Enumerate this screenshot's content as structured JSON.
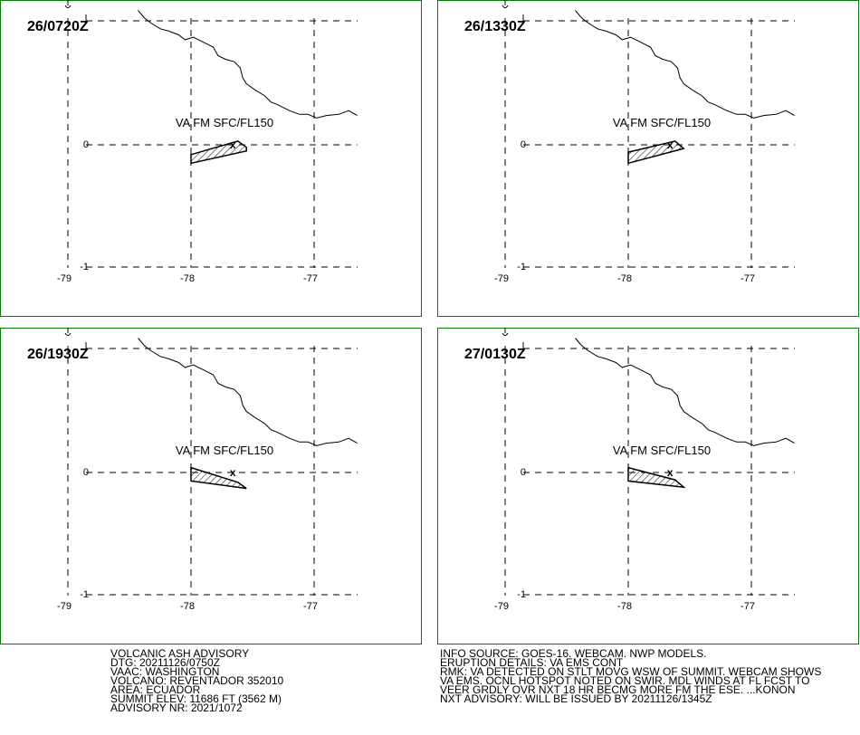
{
  "panels": [
    {
      "time_label": "26/0720Z",
      "cloud_label": "VA FM SFC/FL150",
      "ash_polygon": [
        [
          -78.0,
          -0.08
        ],
        [
          -77.62,
          0.03
        ],
        [
          -77.55,
          -0.02
        ],
        [
          -77.55,
          -0.05
        ],
        [
          -78.0,
          -0.15
        ]
      ]
    },
    {
      "time_label": "26/1330Z",
      "cloud_label": "VA FM SFC/FL150",
      "ash_polygon": [
        [
          -78.0,
          -0.06
        ],
        [
          -77.62,
          0.03
        ],
        [
          -77.55,
          -0.03
        ],
        [
          -78.0,
          -0.15
        ]
      ]
    },
    {
      "time_label": "26/1930Z",
      "cloud_label": "VA FM SFC/FL150",
      "ash_polygon": [
        [
          -78.0,
          0.04
        ],
        [
          -77.62,
          -0.08
        ],
        [
          -77.55,
          -0.13
        ],
        [
          -78.0,
          -0.07
        ]
      ]
    },
    {
      "time_label": "27/0130Z",
      "cloud_label": "VA FM SFC/FL150",
      "ash_polygon": [
        [
          -78.0,
          0.04
        ],
        [
          -77.62,
          -0.06
        ],
        [
          -77.55,
          -0.12
        ],
        [
          -78.0,
          -0.07
        ]
      ]
    }
  ],
  "axes": {
    "lon_ticks": [
      "-79",
      "-78",
      "-77"
    ],
    "lat_ticks": [
      "0",
      "-1"
    ],
    "lon_values": [
      -79,
      -78,
      -77
    ],
    "lat_values": [
      0,
      -1
    ]
  },
  "volcano": {
    "lon": -77.66,
    "lat": -0.08,
    "symbol": "x"
  },
  "coastline": [
    [
      -78.43,
      1.1
    ],
    [
      -78.38,
      1.04
    ],
    [
      -78.33,
      1.0
    ],
    [
      -78.25,
      0.95
    ],
    [
      -78.18,
      0.93
    ],
    [
      -78.1,
      0.9
    ],
    [
      -78.05,
      0.86
    ],
    [
      -77.98,
      0.88
    ],
    [
      -77.9,
      0.84
    ],
    [
      -77.82,
      0.8
    ],
    [
      -77.78,
      0.73
    ],
    [
      -77.72,
      0.7
    ],
    [
      -77.65,
      0.68
    ],
    [
      -77.6,
      0.63
    ],
    [
      -77.58,
      0.55
    ],
    [
      -77.55,
      0.5
    ],
    [
      -77.48,
      0.45
    ],
    [
      -77.4,
      0.4
    ],
    [
      -77.35,
      0.35
    ],
    [
      -77.3,
      0.33
    ],
    [
      -77.2,
      0.28
    ],
    [
      -77.12,
      0.25
    ],
    [
      -77.05,
      0.25
    ],
    [
      -76.98,
      0.22
    ],
    [
      -76.9,
      0.24
    ],
    [
      -76.8,
      0.25
    ],
    [
      -76.72,
      0.28
    ],
    [
      -76.65,
      0.24
    ]
  ],
  "colors": {
    "frame": "#008000",
    "ink": "#000000",
    "background": "#ffffff"
  },
  "advisory_left": [
    "VOLCANIC ASH ADVISORY",
    "DTG: 20211126/0750Z",
    "VAAC: WASHINGTON",
    "VOLCANO: REVENTADOR 352010",
    "AREA: ECUADOR",
    "SUMMIT ELEV: 11686 FT (3562 M)",
    "ADVISORY NR: 2021/1072"
  ],
  "advisory_right": [
    "INFO SOURCE: GOES-16. WEBCAM. NWP MODELS.",
    "ERUPTION DETAILS: VA EMS CONT",
    "RMK: VA DETECTED ON STLT MOVG WSW OF SUMMIT. WEBCAM SHOWS",
    "VA EMS. OCNL HOTSPOT NOTED ON SWIR. MDL WINDS AT FL FCST TO",
    "VEER GRDLY OVR NXT 18 HR BECMG MORE FM THE ESE. ...KONON",
    "NXT ADVISORY: WILL BE ISSUED BY 20211126/1345Z"
  ]
}
